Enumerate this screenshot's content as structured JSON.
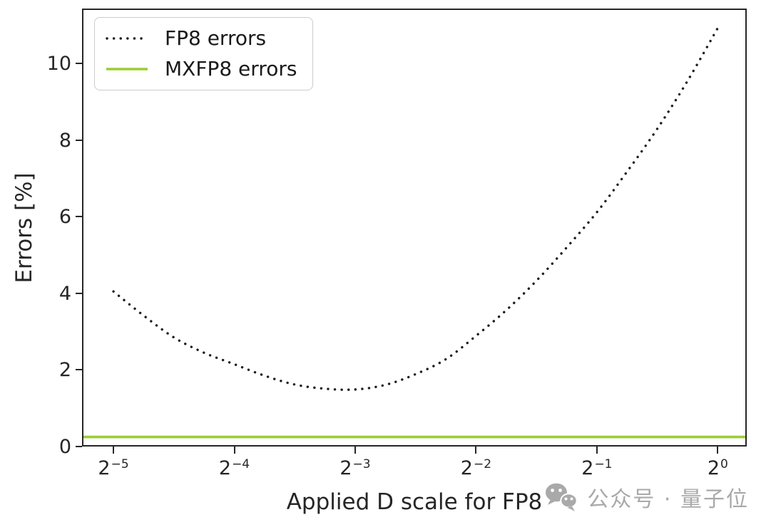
{
  "chart_data": {
    "type": "line",
    "title": "",
    "xlabel": "Applied D scale for FP8",
    "ylabel": "Errors [%]",
    "x_scale": "log2",
    "x_tick_exponents": [
      -5,
      -4,
      -3,
      -2,
      -1,
      0
    ],
    "y_ticks": [
      0,
      2,
      4,
      6,
      8,
      10
    ],
    "x_range_log2": [
      -5.26,
      0.24
    ],
    "ylim": [
      0,
      11.44
    ],
    "grid": false,
    "legend_position": "upper left",
    "series": [
      {
        "name": "FP8 errors",
        "style": "dotted",
        "color": "#1c1c1c",
        "x_log2": [
          -5,
          -4.75,
          -4.5,
          -4.25,
          -4,
          -3.75,
          -3.5,
          -3.25,
          -3,
          -2.75,
          -2.5,
          -2.25,
          -2,
          -1.75,
          -1.5,
          -1.25,
          -1,
          -0.75,
          -0.5,
          -0.25,
          0
        ],
        "errors_percent": [
          4.05,
          3.42,
          2.85,
          2.45,
          2.15,
          1.85,
          1.62,
          1.51,
          1.49,
          1.61,
          1.89,
          2.28,
          2.89,
          3.56,
          4.33,
          5.2,
          6.12,
          7.18,
          8.3,
          9.55,
          10.93
        ]
      },
      {
        "name": "MXFP8 errors",
        "style": "solid",
        "color": "#9acd32",
        "constant_value": 0.25,
        "spans_full_width": true
      }
    ]
  },
  "watermark": {
    "icon": "wechat-icon",
    "text": "公众号 · 量子位",
    "color": "#a9a9a9"
  },
  "colors": {
    "background": "#ffffff",
    "spine": "#262626",
    "tick_text": "#262626",
    "fp8_line": "#1c1c1c",
    "mxfp8_line": "#9acd32",
    "legend_border": "#cccccc"
  }
}
